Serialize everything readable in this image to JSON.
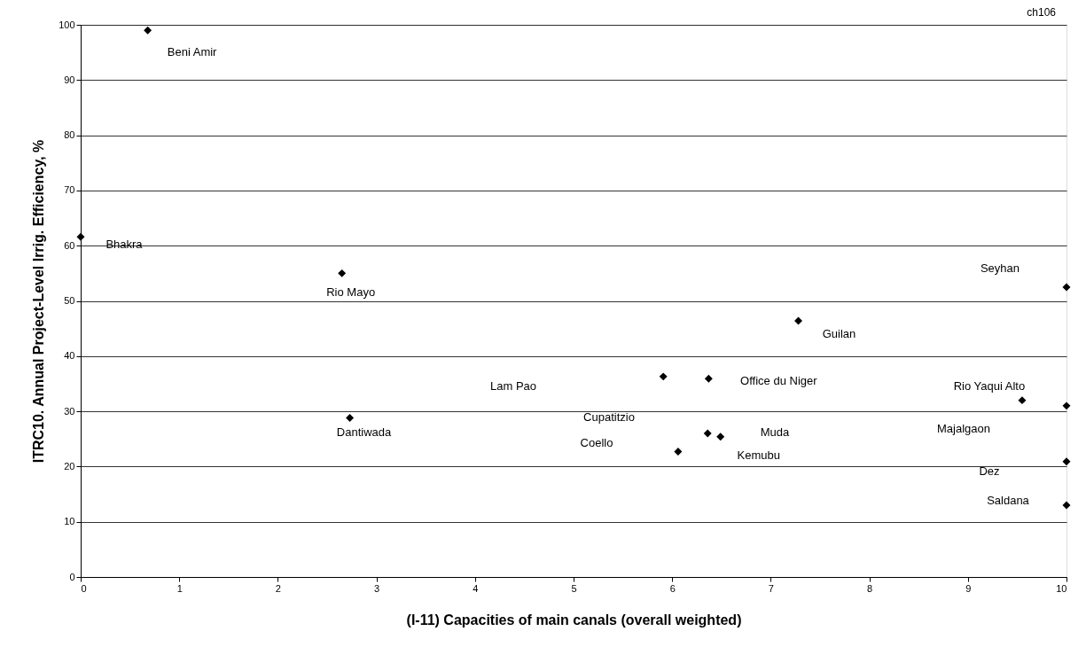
{
  "chart_data": {
    "type": "scatter",
    "xlabel": "(I-11)  Capacities of main canals (overall weighted)",
    "ylabel": "ITRC10.  Annual Project-Level Irrig. Efficiency, %",
    "x": [
      0,
      0.68,
      2.65,
      2.73,
      5.91,
      6.37,
      7.28,
      6.36,
      6.49,
      6.06,
      10,
      9.55,
      10,
      10,
      10
    ],
    "series": [
      {
        "color": "#000000",
        "values": [
          61.6,
          99,
          55,
          28.8,
          36.3,
          35.9,
          46.4,
          26,
          25.4,
          22.7,
          52.5,
          32,
          31,
          20.9,
          13
        ]
      }
    ],
    "marker": "diamond",
    "xlim": [
      0,
      10
    ],
    "xticks": [
      0,
      1,
      2,
      3,
      4,
      5,
      6,
      7,
      8,
      9,
      10
    ],
    "ylim": [
      0,
      100
    ],
    "yticks": [
      0,
      10,
      20,
      30,
      40,
      50,
      60,
      70,
      80,
      90,
      100
    ],
    "grid": "y",
    "annotations": [
      "ch106",
      {
        "text": "Bhakra",
        "x": 0,
        "y": 61.6
      },
      {
        "text": "Beni Amir",
        "x": 0.68,
        "y": 99
      },
      {
        "text": "Rio Mayo",
        "x": 2.65,
        "y": 55
      },
      {
        "text": "Dantiwada",
        "x": 2.73,
        "y": 28.8
      },
      "Lam Pao",
      {
        "text": "Office du Niger",
        "x": 6.37,
        "y": 35.9
      },
      {
        "text": "Guilan",
        "x": 7.28,
        "y": 46.4
      },
      "Cupatitzio",
      "Coello",
      "Muda",
      {
        "text": "Kemubu",
        "x": 6.49,
        "y": 25.4
      },
      "Seyhan",
      {
        "text": "Rio Yaqui Alto",
        "x": 9.55,
        "y": 32
      },
      "Majalgaon",
      "Dez",
      "Saldana"
    ]
  }
}
